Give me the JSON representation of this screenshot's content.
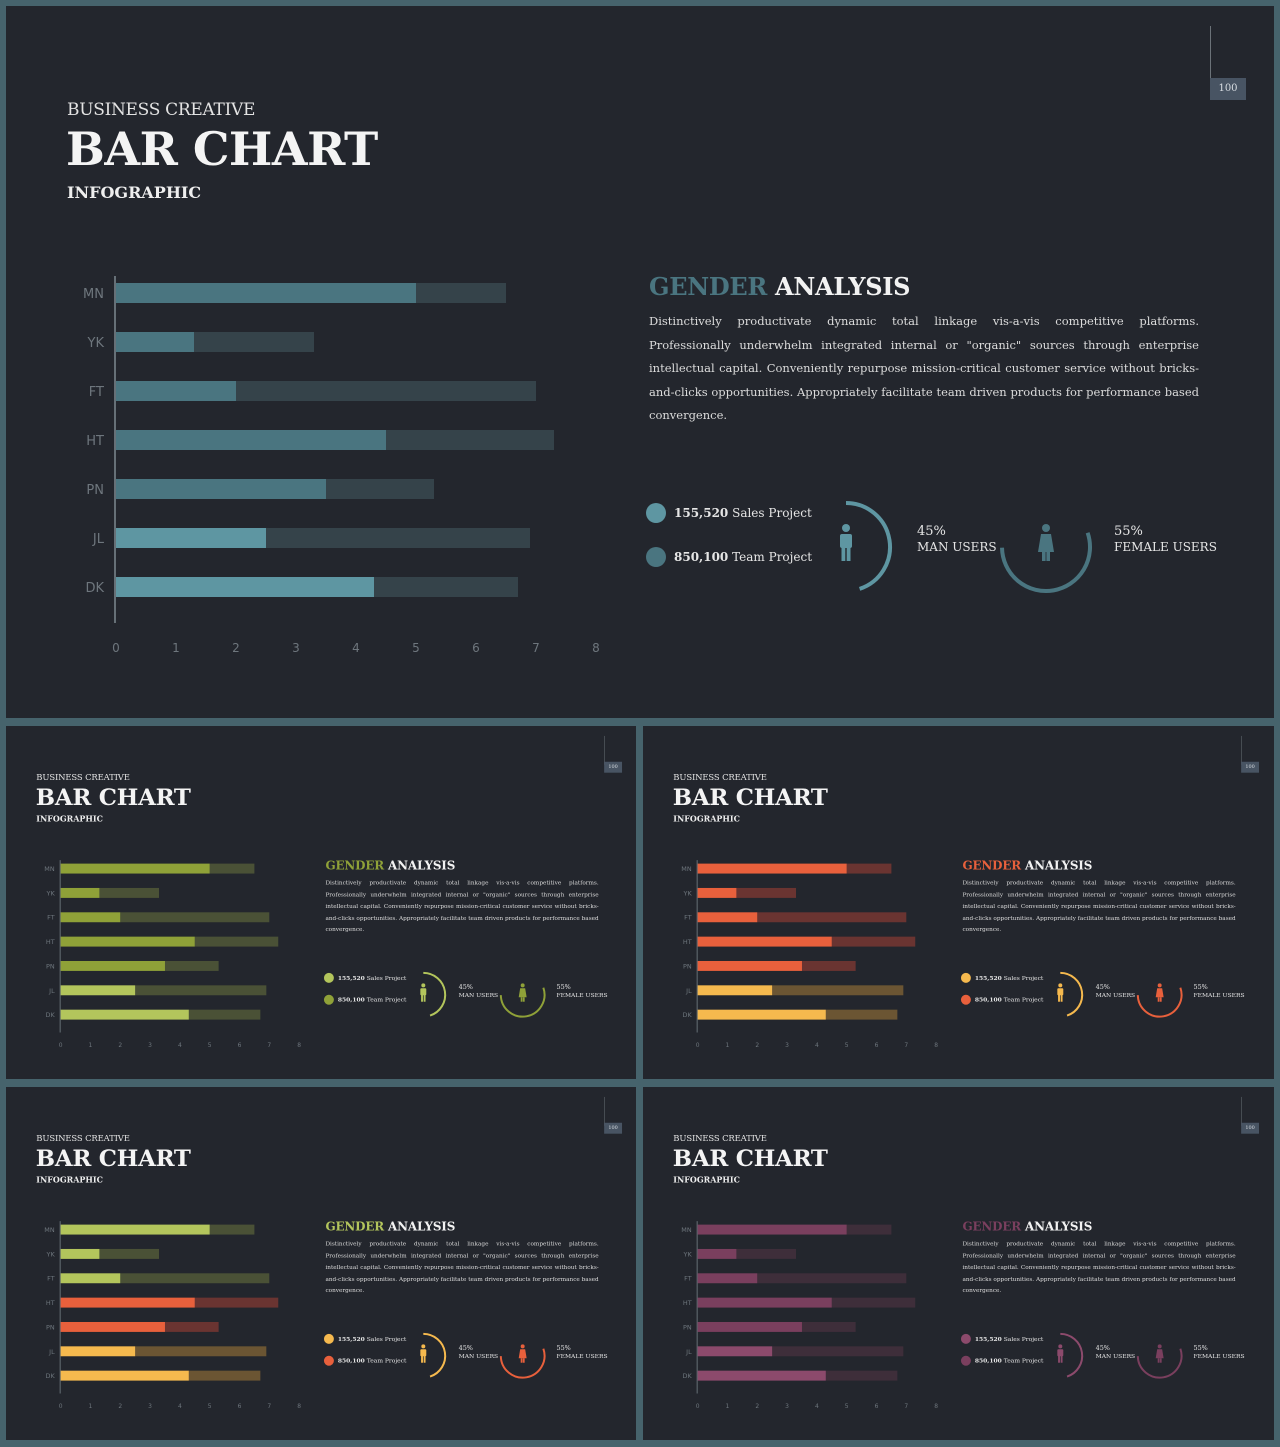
{
  "page_number": "100",
  "header": {
    "kicker": "BUSINESS CREATIVE",
    "title": "BAR CHART",
    "subtitle": "INFOGRAPHIC"
  },
  "analysis": {
    "title_accent": "GENDER",
    "title_rest": " ANALYSIS",
    "body": "Distinctively productivate dynamic total linkage vis-a-vis competitive platforms. Professionally underwhelm integrated internal or \"organic\" sources through enterprise intellectual capital. Conveniently repurpose mission-critical customer service without bricks-and-clicks opportunities. Appropriately facilitate team driven products for performance based convergence."
  },
  "legend": [
    {
      "value": "155,520",
      "text": " Sales Project"
    },
    {
      "value": "850,100",
      "text": " Team Project"
    }
  ],
  "gauges": [
    {
      "percent": "45%",
      "label": "MAN USERS",
      "fraction": 0.45
    },
    {
      "percent": "55%",
      "label": "FEMALE USERS",
      "fraction": 0.55
    }
  ],
  "chart_data": {
    "type": "bar",
    "orientation": "horizontal",
    "stacked": true,
    "categories": [
      "MN",
      "YK",
      "FT",
      "HT",
      "PN",
      "JL",
      "DK"
    ],
    "series": [
      {
        "values": [
          5.0,
          1.3,
          2.0,
          4.5,
          3.5,
          2.5,
          4.3
        ]
      },
      {
        "values": [
          1.5,
          2.0,
          5.0,
          2.8,
          1.8,
          4.4,
          2.4
        ]
      }
    ],
    "xlim": [
      0,
      8
    ],
    "xticks": [
      "0",
      "1",
      "2",
      "3",
      "4",
      "5",
      "6",
      "7",
      "8"
    ],
    "grid": false
  },
  "slides": [
    {
      "accent": "#4a7580",
      "bar_colors": [
        "#4a7580",
        "#4a7580",
        "#4a7580",
        "#4a7580",
        "#4a7580",
        "#5e96a2",
        "#5e96a2"
      ],
      "rest_colors": [
        "#35434a",
        "#35434a",
        "#35434a",
        "#35434a",
        "#35434a",
        "#35434a",
        "#35434a"
      ],
      "legend_colors": [
        "#5e96a2",
        "#4a7580"
      ],
      "gauge_colors": [
        "#5e96a2",
        "#4a7580"
      ],
      "icon_colors": [
        "#5e96a2",
        "#4a7580"
      ],
      "axis_color": "#667077",
      "label_color": "#6e767d"
    },
    {
      "accent": "#8fa138",
      "bar_colors": [
        "#8fa138",
        "#8fa138",
        "#8fa138",
        "#8fa138",
        "#8fa138",
        "#b3c55c",
        "#b3c55c"
      ],
      "rest_colors": [
        "#4a5136",
        "#4a5136",
        "#4a5136",
        "#4a5136",
        "#4a5136",
        "#4a5136",
        "#4a5136"
      ],
      "legend_colors": [
        "#b3c55c",
        "#8fa138"
      ],
      "gauge_colors": [
        "#b3c55c",
        "#8fa138"
      ],
      "icon_colors": [
        "#b3c55c",
        "#8fa138"
      ],
      "axis_color": "#667077",
      "label_color": "#6e767d"
    },
    {
      "accent": "#e8603c",
      "bar_colors": [
        "#e8603c",
        "#e8603c",
        "#e8603c",
        "#e8603c",
        "#e8603c",
        "#f5b94e",
        "#f5b94e"
      ],
      "rest_colors": [
        "#6a3431",
        "#6a3431",
        "#6a3431",
        "#6a3431",
        "#6a3431",
        "#6b5533",
        "#6b5533"
      ],
      "legend_colors": [
        "#f5b94e",
        "#e8603c"
      ],
      "gauge_colors": [
        "#f5b94e",
        "#e8603c"
      ],
      "icon_colors": [
        "#f5b94e",
        "#e8603c"
      ],
      "axis_color": "#667077",
      "label_color": "#6e767d"
    },
    {
      "accent": "#b3c55c",
      "bar_colors": [
        "#b3c55c",
        "#b3c55c",
        "#b3c55c",
        "#e8603c",
        "#e8603c",
        "#f5b94e",
        "#f5b94e"
      ],
      "rest_colors": [
        "#4a5136",
        "#4a5136",
        "#4a5136",
        "#6a3431",
        "#6a3431",
        "#6b5533",
        "#6b5533"
      ],
      "legend_colors": [
        "#f5b94e",
        "#e8603c"
      ],
      "gauge_colors": [
        "#f5b94e",
        "#e8603c"
      ],
      "icon_colors": [
        "#f5b94e",
        "#e8603c"
      ],
      "axis_color": "#667077",
      "label_color": "#6e767d"
    },
    {
      "accent": "#7a3f5e",
      "bar_colors": [
        "#7a3f5e",
        "#7a3f5e",
        "#7a3f5e",
        "#7a3f5e",
        "#7a3f5e",
        "#8c4a6c",
        "#8c4a6c"
      ],
      "rest_colors": [
        "#3e2e3a",
        "#3e2e3a",
        "#3e2e3a",
        "#3e2e3a",
        "#3e2e3a",
        "#3e2e3a",
        "#3e2e3a"
      ],
      "legend_colors": [
        "#8c4a6c",
        "#7a3f5e"
      ],
      "gauge_colors": [
        "#8c4a6c",
        "#7a3f5e"
      ],
      "icon_colors": [
        "#8c4a6c",
        "#7a3f5e"
      ],
      "axis_color": "#667077",
      "label_color": "#6e767d"
    }
  ]
}
